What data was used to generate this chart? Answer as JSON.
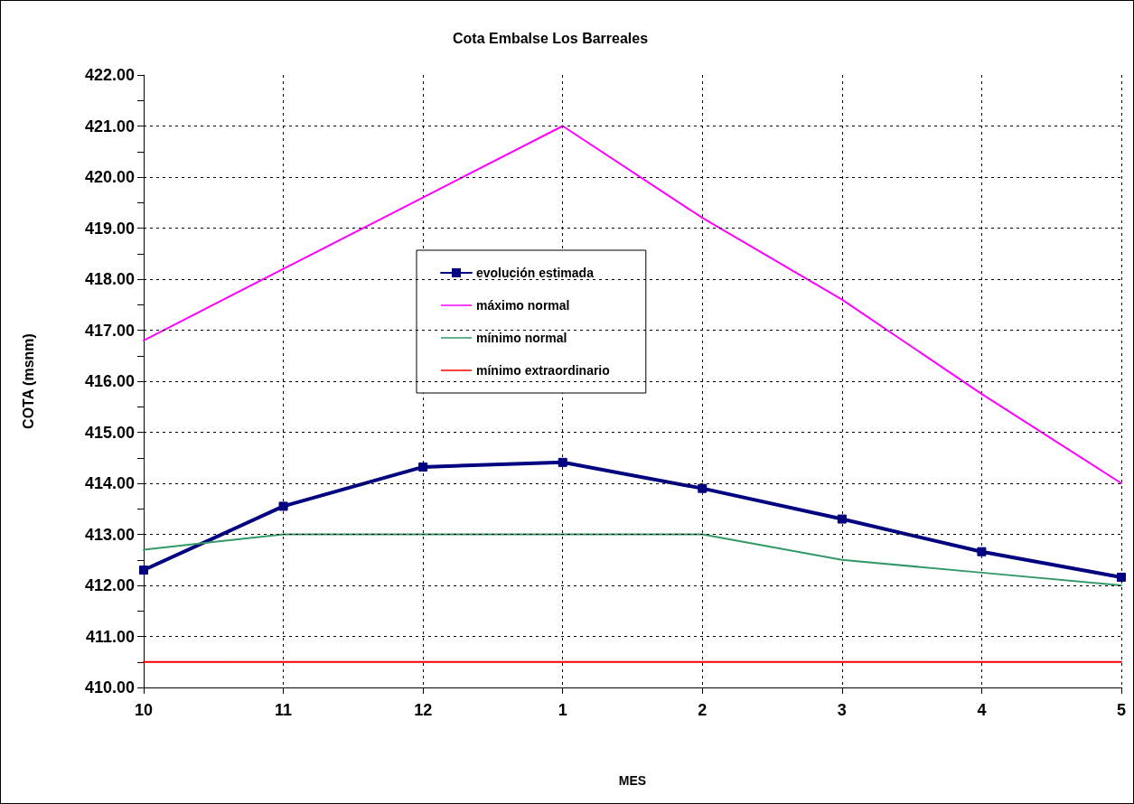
{
  "chart_data": {
    "type": "line",
    "title": "Cota Embalse Los Barreales",
    "xlabel": "MES",
    "ylabel": "COTA (msnm)",
    "categories": [
      "10",
      "11",
      "12",
      "1",
      "2",
      "3",
      "4",
      "5"
    ],
    "series": [
      {
        "name": "evolución estimada",
        "color": "#000080",
        "marker": "square",
        "values": [
          412.3,
          413.55,
          414.32,
          414.41,
          413.9,
          413.3,
          412.66,
          412.16
        ]
      },
      {
        "name": "máximo normal",
        "color": "#ff00ff",
        "marker": "none",
        "values": [
          416.8,
          418.2,
          419.6,
          421.0,
          419.2,
          417.6,
          415.75,
          414.0
        ]
      },
      {
        "name": "mínimo normal",
        "color": "#339966",
        "marker": "none",
        "values": [
          412.7,
          413.0,
          413.0,
          413.0,
          413.0,
          412.5,
          412.25,
          412.0
        ]
      },
      {
        "name": "mínimo extraordinario",
        "color": "#ff0000",
        "marker": "none",
        "values": [
          410.5,
          410.5,
          410.5,
          410.5,
          410.5,
          410.5,
          410.5,
          410.5
        ]
      }
    ],
    "ylim": [
      410,
      422
    ],
    "yticks": [
      {
        "value": 410,
        "label": "410.00"
      },
      {
        "value": 410.5,
        "label": null
      },
      {
        "value": 411,
        "label": "411.00"
      },
      {
        "value": 411.5,
        "label": null
      },
      {
        "value": 412,
        "label": "412.00"
      },
      {
        "value": 412.5,
        "label": null
      },
      {
        "value": 413,
        "label": "413.00"
      },
      {
        "value": 413.5,
        "label": null
      },
      {
        "value": 414,
        "label": "414.00"
      },
      {
        "value": 414.5,
        "label": null
      },
      {
        "value": 415,
        "label": "415.00"
      },
      {
        "value": 415.5,
        "label": null
      },
      {
        "value": 416,
        "label": "416.00"
      },
      {
        "value": 416.5,
        "label": null
      },
      {
        "value": 417,
        "label": "417.00"
      },
      {
        "value": 417.5,
        "label": null
      },
      {
        "value": 418,
        "label": "418.00"
      },
      {
        "value": 418.5,
        "label": null
      },
      {
        "value": 419,
        "label": "419.00"
      },
      {
        "value": 419.5,
        "label": null
      },
      {
        "value": 420,
        "label": "420.00"
      },
      {
        "value": 420.5,
        "label": null
      },
      {
        "value": 421,
        "label": "421.00"
      },
      {
        "value": 421.5,
        "label": null
      },
      {
        "value": 422,
        "label": "422.00"
      }
    ],
    "grid": true,
    "legend": "center",
    "line_style": "solid"
  }
}
